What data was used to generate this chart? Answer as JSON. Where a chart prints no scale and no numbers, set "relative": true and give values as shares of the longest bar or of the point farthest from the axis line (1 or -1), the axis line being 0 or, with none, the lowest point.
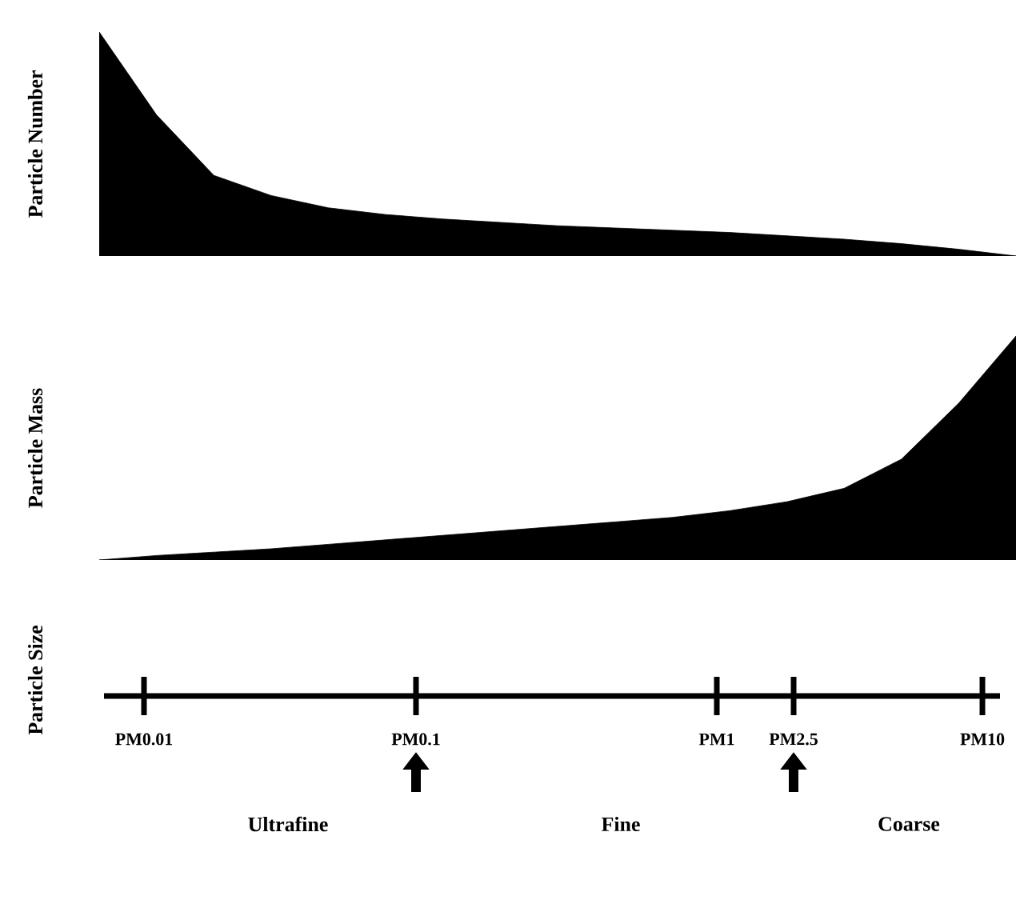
{
  "chart_data": [
    {
      "type": "area",
      "ylabel": "Particle Number",
      "relative": true,
      "color": "#000000",
      "categories": [
        null,
        null,
        null,
        null,
        null,
        null,
        null,
        null,
        null,
        null,
        null,
        null,
        null,
        null,
        null,
        null,
        null
      ],
      "values": [
        1.0,
        0.63,
        0.36,
        0.27,
        0.215,
        0.185,
        0.165,
        0.15,
        0.135,
        0.125,
        0.115,
        0.105,
        0.09,
        0.075,
        0.055,
        0.03,
        0.0
      ]
    },
    {
      "type": "area",
      "ylabel": "Particle Mass",
      "relative": true,
      "color": "#000000",
      "categories": [
        null,
        null,
        null,
        null,
        null,
        null,
        null,
        null,
        null,
        null,
        null,
        null,
        null,
        null,
        null,
        null,
        null
      ],
      "values": [
        0.0,
        0.02,
        0.035,
        0.05,
        0.07,
        0.09,
        0.11,
        0.13,
        0.15,
        0.17,
        0.19,
        0.22,
        0.26,
        0.32,
        0.45,
        0.7,
        1.0
      ]
    },
    {
      "type": "other",
      "ylabel": "Particle Size",
      "annotations": [
        "PM0.01",
        "PM0.1",
        "PM1",
        "PM2.5",
        "PM10",
        "Ultrafine",
        "Fine",
        "Coarse"
      ]
    }
  ]
}
